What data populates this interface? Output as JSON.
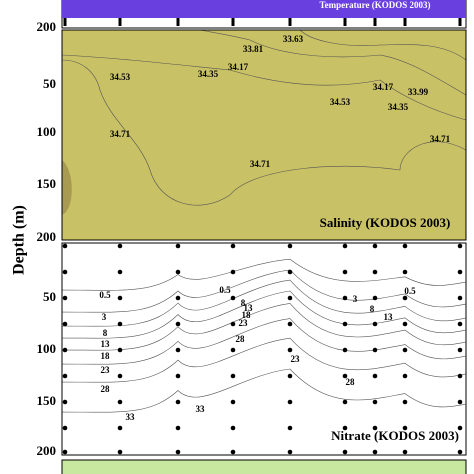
{
  "y_axis_label": "Depth (m)",
  "temperature_panel": {
    "title": "Temperature (KODOS 2003)",
    "yticks": [
      "200"
    ]
  },
  "salinity_panel": {
    "title": "Salinity (KODOS 2003)",
    "yticks": [
      "50",
      "100",
      "150",
      "200"
    ],
    "contour_labels": [
      "33.63",
      "33.81",
      "34.17",
      "34.35",
      "34.53",
      "34.53",
      "34.17",
      "33.99",
      "34.35",
      "34.71",
      "34.71",
      "34.71"
    ]
  },
  "nitrate_panel": {
    "title": "Nitrate (KODOS 2003)",
    "yticks": [
      "50",
      "100",
      "150",
      "200"
    ],
    "contour_labels": [
      "0.5",
      "3",
      "8",
      "13",
      "18",
      "23",
      "28",
      "33",
      "33",
      "28",
      "23",
      "18",
      "13",
      "8",
      "0.5",
      "3",
      "8",
      "13",
      "28",
      "0.5",
      "23"
    ]
  }
}
